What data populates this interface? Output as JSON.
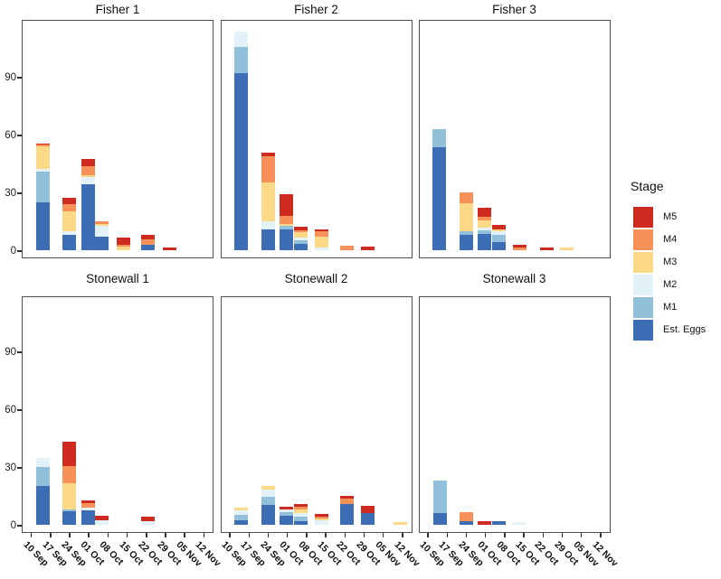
{
  "legend": {
    "title": "Stage",
    "items": [
      {
        "stage": "m5",
        "label": "M5"
      },
      {
        "stage": "m4",
        "label": "M4"
      },
      {
        "stage": "m3",
        "label": "M3"
      },
      {
        "stage": "m2",
        "label": "M2"
      },
      {
        "stage": "m1",
        "label": "M1"
      },
      {
        "stage": "est",
        "label": "Est. Eggs"
      }
    ]
  },
  "chart_data": {
    "type": "bar",
    "stacked": true,
    "legend_position": "right",
    "grid": false,
    "stage_order_bottom_to_top": [
      "est",
      "m1",
      "m2",
      "m3",
      "m4",
      "m5"
    ],
    "stage_labels": {
      "est": "Est. Eggs",
      "m1": "M1",
      "m2": "M2",
      "m3": "M3",
      "m4": "M4",
      "m5": "M5"
    },
    "colors": {
      "est": "#3d6db5",
      "m1": "#92bfda",
      "m2": "#e3f1f8",
      "m3": "#fcd986",
      "m4": "#f8905a",
      "m5": "#cf2a20"
    },
    "y_axis": {
      "ticks": [
        0,
        30,
        60,
        90
      ],
      "max": 119,
      "label": ""
    },
    "x_labels": [
      "10 Sep",
      "17 Sep",
      "24 Sep",
      "01 Oct",
      "08 Oct",
      "15 Oct",
      "22 Oct",
      "29 Oct",
      "05 Nov",
      "12 Nov"
    ],
    "facets": [
      {
        "title": "Fisher 1",
        "row": 0,
        "col": 0,
        "bars": [
          {
            "pos": 0.55,
            "date": "17 Sep",
            "seg": {
              "est": 25,
              "m1": 16,
              "m2": 1,
              "m3": 12,
              "m4": 1,
              "m5": 0.5
            }
          },
          {
            "pos": 1.95,
            "date": "24 Sep",
            "seg": {
              "est": 8,
              "m2": 2,
              "m3": 10,
              "m4": 4,
              "m5": 3
            }
          },
          {
            "pos": 2.9,
            "date": "01 Oct",
            "seg": {
              "est": 34,
              "m2": 4,
              "m3": 1,
              "m4": 4.5,
              "m5": 4
            }
          },
          {
            "pos": 3.65,
            "date": "08 Oct",
            "seg": {
              "est": 7,
              "m2": 5.5,
              "m3": 1,
              "m4": 1.5
            }
          },
          {
            "pos": 4.75,
            "date": "15 Oct",
            "seg": {
              "m3": 2,
              "m4": 1,
              "m5": 3.5
            }
          },
          {
            "pos": 6.05,
            "date": "22 Oct",
            "seg": {
              "est": 3,
              "m4": 2.5,
              "m5": 2.5
            }
          },
          {
            "pos": 7.15,
            "date": "29 Oct",
            "seg": {
              "m5": 1.5
            }
          }
        ]
      },
      {
        "title": "Fisher 2",
        "row": 0,
        "col": 1,
        "bars": [
          {
            "pos": 0.55,
            "date": "17 Sep",
            "seg": {
              "est": 92,
              "m1": 13.5,
              "m2": 8
            }
          },
          {
            "pos": 1.95,
            "date": "24 Sep",
            "seg": {
              "est": 11,
              "m2": 4,
              "m3": 20,
              "m4": 14,
              "m5": 1.5
            }
          },
          {
            "pos": 2.9,
            "date": "01 Oct",
            "seg": {
              "est": 11,
              "m1": 1.5,
              "m3": 1,
              "m4": 4.5,
              "m5": 11
            }
          },
          {
            "pos": 3.65,
            "date": "08 Oct",
            "seg": {
              "est": 3.5,
              "m1": 1.5,
              "m2": 1.5,
              "m3": 3,
              "m4": 1,
              "m5": 1.5
            }
          },
          {
            "pos": 4.75,
            "date": "15 Oct",
            "seg": {
              "m2": 1.5,
              "m3": 5.5,
              "m4": 3,
              "m5": 1
            }
          },
          {
            "pos": 6.05,
            "date": "22 Oct",
            "seg": {
              "m4": 2.2
            }
          },
          {
            "pos": 7.15,
            "date": "29 Oct",
            "seg": {
              "m5": 2
            }
          }
        ]
      },
      {
        "title": "Fisher 3",
        "row": 0,
        "col": 2,
        "bars": [
          {
            "pos": 0.55,
            "date": "17 Sep",
            "seg": {
              "est": 53.5,
              "m1": 9.5
            }
          },
          {
            "pos": 1.95,
            "date": "24 Sep",
            "seg": {
              "est": 8,
              "m1": 2,
              "m3": 14.5,
              "m4": 5.5
            }
          },
          {
            "pos": 2.9,
            "date": "01 Oct",
            "seg": {
              "est": 8.5,
              "m1": 2,
              "m2": 1,
              "m3": 4,
              "m4": 2,
              "m5": 4.5
            }
          },
          {
            "pos": 3.65,
            "date": "08 Oct",
            "seg": {
              "est": 4,
              "m1": 4,
              "m2": 2,
              "m3": 1,
              "m5": 2
            }
          },
          {
            "pos": 4.75,
            "date": "15 Oct",
            "seg": {
              "m4": 1.5,
              "m5": 1.2
            }
          },
          {
            "pos": 6.15,
            "date": "22 Oct",
            "seg": {
              "m5": 1.2
            }
          },
          {
            "pos": 7.2,
            "date": "29 Oct",
            "seg": {
              "m3": 1.2
            }
          }
        ]
      },
      {
        "title": "Stonewall 1",
        "row": 1,
        "col": 0,
        "bars": [
          {
            "pos": 0.55,
            "date": "17 Sep",
            "seg": {
              "est": 20,
              "m1": 10,
              "m2": 4.5
            }
          },
          {
            "pos": 1.95,
            "date": "24 Sep",
            "seg": {
              "est": 7,
              "m1": 1,
              "m3": 13.5,
              "m4": 9,
              "m5": 12.5
            }
          },
          {
            "pos": 2.9,
            "date": "01 Oct",
            "seg": {
              "est": 7.5,
              "m2": 1.5,
              "m4": 2.2,
              "m5": 1.3
            }
          },
          {
            "pos": 3.65,
            "date": "08 Oct",
            "seg": {
              "m2": 2.3,
              "m5": 2.2
            }
          },
          {
            "pos": 6.05,
            "date": "22 Oct",
            "seg": {
              "m2": 2,
              "m5": 2
            }
          }
        ]
      },
      {
        "title": "Stonewall 2",
        "row": 1,
        "col": 1,
        "bars": [
          {
            "pos": 0.55,
            "date": "17 Sep",
            "seg": {
              "est": 2.5,
              "m1": 2.5,
              "m2": 2.7,
              "m3": 1.3
            }
          },
          {
            "pos": 1.95,
            "date": "24 Sep",
            "seg": {
              "est": 10.5,
              "m1": 4,
              "m2": 3.6,
              "m3": 2.2
            }
          },
          {
            "pos": 2.9,
            "date": "01 Oct",
            "seg": {
              "est": 4.5,
              "m1": 2,
              "m2": 1.7,
              "m5": 1
            }
          },
          {
            "pos": 3.65,
            "date": "08 Oct",
            "seg": {
              "est": 2,
              "m1": 2,
              "m2": 2,
              "m3": 2,
              "m4": 1.2,
              "m5": 1.8
            }
          },
          {
            "pos": 4.75,
            "date": "15 Oct",
            "seg": {
              "m2": 2.3,
              "m3": 1.1,
              "m4": 0.8,
              "m5": 1.6
            }
          },
          {
            "pos": 6.05,
            "date": "22 Oct",
            "seg": {
              "est": 11,
              "m4": 2.5,
              "m5": 1.5
            }
          },
          {
            "pos": 7.15,
            "date": "29 Oct",
            "seg": {
              "est": 6,
              "m5": 4
            }
          },
          {
            "pos": 8.85,
            "date": "12 Nov",
            "seg": {
              "m3": 1.2
            }
          }
        ]
      },
      {
        "title": "Stonewall 3",
        "row": 1,
        "col": 2,
        "bars": [
          {
            "pos": 0.6,
            "date": "17 Sep",
            "seg": {
              "est": 6,
              "m1": 17
            }
          },
          {
            "pos": 1.95,
            "date": "24 Sep",
            "seg": {
              "est": 2,
              "m4": 4.5
            }
          },
          {
            "pos": 2.9,
            "date": "01 Oct",
            "seg": {
              "m5": 1.8
            }
          },
          {
            "pos": 3.65,
            "date": "08 Oct",
            "seg": {
              "est": 1.8
            }
          },
          {
            "pos": 4.7,
            "date": "15 Oct",
            "seg": {
              "m2": 1.2
            }
          }
        ]
      }
    ]
  }
}
